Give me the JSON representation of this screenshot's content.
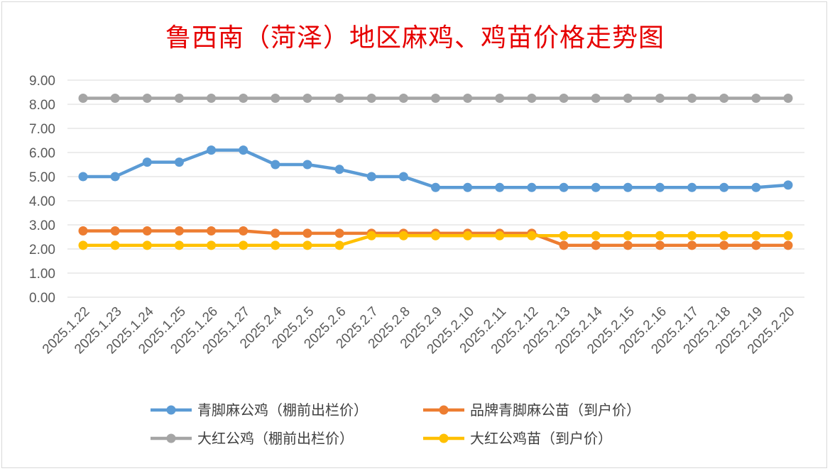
{
  "chart_data": {
    "type": "line",
    "title": "鲁西南（菏泽）地区麻鸡、鸡苗价格走势图",
    "categories": [
      "2025.1.22",
      "2025.1.23",
      "2025.1.24",
      "2025.1.25",
      "2025.1.26",
      "2025.1.27",
      "2025.2.4",
      "2025.2.5",
      "2025.2.6",
      "2025.2.7",
      "2025.2.8",
      "2025.2.9",
      "2025.2.10",
      "2025.2.11",
      "2025.2.12",
      "2025.2.13",
      "2025.2.14",
      "2025.2.15",
      "2025.2.16",
      "2025.2.17",
      "2025.2.18",
      "2025.2.19",
      "2025.2.20"
    ],
    "ylim": [
      0,
      9
    ],
    "yticks": [
      "0.00",
      "1.00",
      "2.00",
      "3.00",
      "4.00",
      "5.00",
      "6.00",
      "7.00",
      "8.00",
      "9.00"
    ],
    "grid": true,
    "legend_position": "bottom",
    "series": [
      {
        "name": "青脚麻公鸡（棚前出栏价）",
        "color": "#5b9bd5",
        "values": [
          5.0,
          5.0,
          5.6,
          5.6,
          6.1,
          6.1,
          5.5,
          5.5,
          5.3,
          5.0,
          5.0,
          4.55,
          4.55,
          4.55,
          4.55,
          4.55,
          4.55,
          4.55,
          4.55,
          4.55,
          4.55,
          4.55,
          4.65
        ]
      },
      {
        "name": "品牌青脚麻公苗（到户价）",
        "color": "#ed7d31",
        "values": [
          2.75,
          2.75,
          2.75,
          2.75,
          2.75,
          2.75,
          2.65,
          2.65,
          2.65,
          2.65,
          2.65,
          2.65,
          2.65,
          2.65,
          2.65,
          2.15,
          2.15,
          2.15,
          2.15,
          2.15,
          2.15,
          2.15,
          2.15
        ]
      },
      {
        "name": "大红公鸡（棚前出栏价）",
        "color": "#a5a5a5",
        "values": [
          8.25,
          8.25,
          8.25,
          8.25,
          8.25,
          8.25,
          8.25,
          8.25,
          8.25,
          8.25,
          8.25,
          8.25,
          8.25,
          8.25,
          8.25,
          8.25,
          8.25,
          8.25,
          8.25,
          8.25,
          8.25,
          8.25,
          8.25
        ]
      },
      {
        "name": "大红公鸡苗（到户价）",
        "color": "#ffc000",
        "values": [
          2.15,
          2.15,
          2.15,
          2.15,
          2.15,
          2.15,
          2.15,
          2.15,
          2.15,
          2.55,
          2.55,
          2.55,
          2.55,
          2.55,
          2.55,
          2.55,
          2.55,
          2.55,
          2.55,
          2.55,
          2.55,
          2.55,
          2.55
        ]
      }
    ]
  }
}
